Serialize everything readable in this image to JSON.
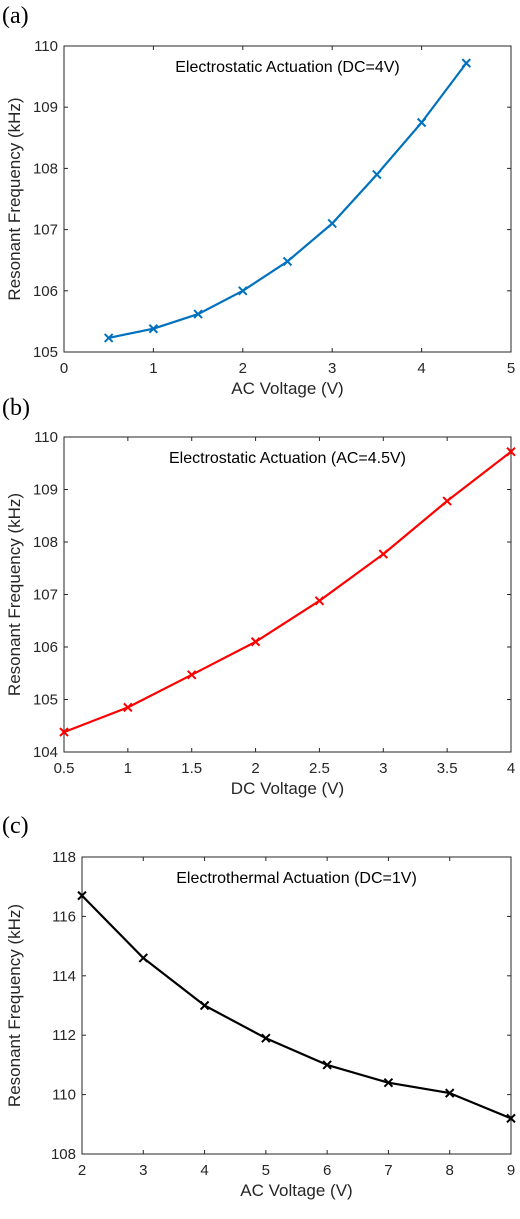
{
  "chart_data": [
    {
      "panel_label": "(a)",
      "type": "line",
      "annotation": "Electrostatic Actuation (DC=4V)",
      "xlabel": "AC Voltage (V)",
      "ylabel": "Resonant Frequency (kHz)",
      "xlim": [
        0,
        5
      ],
      "ylim": [
        105,
        110
      ],
      "xticks": [
        "0",
        "1",
        "2",
        "3",
        "4",
        "5"
      ],
      "yticks": [
        "105",
        "106",
        "107",
        "108",
        "109",
        "110"
      ],
      "grid": false,
      "color": "#0072BD",
      "marker": "x",
      "x": [
        0.5,
        1,
        1.5,
        2,
        2.5,
        3,
        3.5,
        4,
        4.5
      ],
      "y": [
        105.23,
        105.38,
        105.62,
        106.0,
        106.48,
        107.1,
        107.9,
        108.75,
        109.72
      ]
    },
    {
      "panel_label": "(b)",
      "type": "line",
      "annotation": "Electrostatic Actuation (AC=4.5V)",
      "xlabel": "DC Voltage (V)",
      "ylabel": "Resonant Frequency (kHz)",
      "xlim": [
        0.5,
        4
      ],
      "ylim": [
        104,
        110
      ],
      "xticks": [
        "0.5",
        "1",
        "1.5",
        "2",
        "2.5",
        "3",
        "3.5",
        "4"
      ],
      "yticks": [
        "104",
        "105",
        "106",
        "107",
        "108",
        "109",
        "110"
      ],
      "grid": false,
      "color": "#FF0000",
      "marker": "x",
      "x": [
        0.5,
        1,
        1.5,
        2,
        2.5,
        3,
        3.5,
        4
      ],
      "y": [
        104.38,
        104.85,
        105.47,
        106.1,
        106.88,
        107.77,
        108.78,
        109.72
      ]
    },
    {
      "panel_label": "(c)",
      "type": "line",
      "annotation": "Electrothermal Actuation (DC=1V)",
      "xlabel": "AC Voltage (V)",
      "ylabel": "Resonant Frequency (kHz)",
      "xlim": [
        2,
        9
      ],
      "ylim": [
        108,
        118
      ],
      "xticks": [
        "2",
        "3",
        "4",
        "5",
        "6",
        "7",
        "8",
        "9"
      ],
      "yticks": [
        "108",
        "110",
        "112",
        "114",
        "116",
        "118"
      ],
      "grid": false,
      "color": "#000000",
      "marker": "x",
      "x": [
        2,
        3,
        4,
        5,
        6,
        7,
        8,
        9
      ],
      "y": [
        116.7,
        114.6,
        113.0,
        111.9,
        111.0,
        110.4,
        110.05,
        109.2
      ]
    }
  ]
}
